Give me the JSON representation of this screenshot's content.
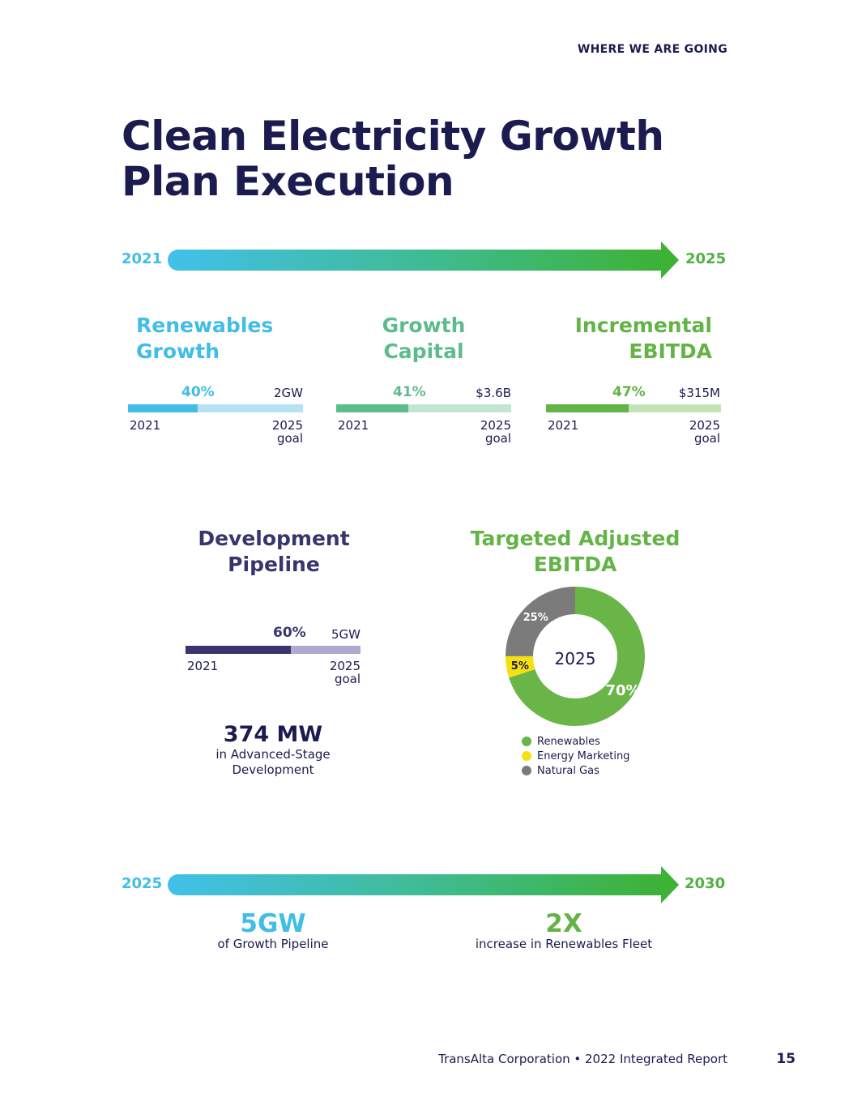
{
  "header": {
    "section": "WHERE WE ARE GOING"
  },
  "title": {
    "line1": "Clean Electricity Growth",
    "line2": "Plan Execution"
  },
  "timeline_top": {
    "start": "2021",
    "end": "2025"
  },
  "metrics": [
    {
      "title1": "Renewables",
      "title2": "Growth",
      "pct": "40%",
      "progress": 0.4,
      "goal": "2GW",
      "start": "2021",
      "end1": "2025",
      "end2": "goal",
      "color": "#41bde6",
      "track": "#b6e2f4"
    },
    {
      "title1": "Growth",
      "title2": "Capital",
      "pct": "41%",
      "progress": 0.41,
      "goal": "$3.6B",
      "start": "2021",
      "end1": "2025",
      "end2": "goal",
      "color": "#5dbc8c",
      "track": "#c2e6d3"
    },
    {
      "title1": "Incremental",
      "title2": "EBITDA",
      "pct": "47%",
      "progress": 0.47,
      "goal": "$315M",
      "start": "2021",
      "end1": "2025",
      "end2": "goal",
      "color": "#63b346",
      "track": "#c5e3b5"
    }
  ],
  "pipeline": {
    "title1": "Development",
    "title2": "Pipeline",
    "pct": "60%",
    "progress": 0.6,
    "goal": "5GW",
    "start": "2021",
    "end1": "2025",
    "end2": "goal",
    "color": "#38356e",
    "track": "#aeaad0",
    "stat": "374 MW",
    "stat_sub1": "in Advanced-Stage",
    "stat_sub2": "Development"
  },
  "ebitda_chart": {
    "title1": "Targeted Adjusted",
    "title2": "EBITDA",
    "center_label": "2025",
    "title_color": "#63b346"
  },
  "chart_data": {
    "type": "pie",
    "categories": [
      "Renewables",
      "Energy Marketing",
      "Natural Gas"
    ],
    "values": [
      70,
      5,
      25
    ],
    "labels": [
      "70%",
      "5%",
      "25%"
    ],
    "colors": [
      "#6ab548",
      "#f5e10f",
      "#7b7b7b"
    ],
    "center_label": "2025",
    "title": "Targeted Adjusted EBITDA",
    "legend": "bottom"
  },
  "timeline_bottom": {
    "start": "2025",
    "end": "2030",
    "left_stat": "5GW",
    "left_sub": "of Growth Pipeline",
    "right_stat": "2X",
    "right_sub": "increase in Renewables Fleet"
  },
  "colors": {
    "navy": "#1b1b4f",
    "blue": "#41bde6",
    "green": "#63b346",
    "teal": "#5dbc8c"
  },
  "footer": {
    "text": "TransAlta Corporation • 2022 Integrated Report",
    "page": "15"
  }
}
